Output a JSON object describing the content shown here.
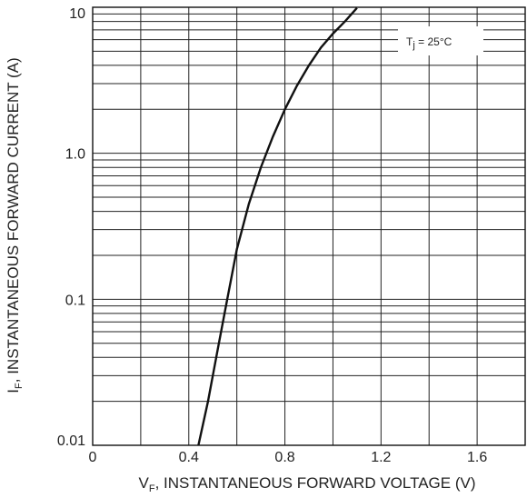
{
  "chart_data": {
    "type": "line",
    "title": "",
    "xlabel": {
      "main": "V",
      "sub": "F",
      "rest": ", INSTANTANEOUS FORWARD VOLTAGE (V)"
    },
    "ylabel": {
      "main": "I",
      "sub": "F",
      "rest": ", INSTANTANEOUS FORWARD CURRENT (A)"
    },
    "xlim": [
      0,
      1.8
    ],
    "ylim": [
      0.01,
      10
    ],
    "yscale": "log",
    "x_ticks": [
      "0",
      "0.4",
      "0.8",
      "1.2",
      "1.6"
    ],
    "x_tick_values": [
      0,
      0.4,
      0.8,
      1.2,
      1.6
    ],
    "y_ticks": [
      "0.01",
      "0.1",
      "1.0",
      "10"
    ],
    "y_tick_values": [
      0.01,
      0.1,
      1.0,
      10
    ],
    "grid": true,
    "annotation": {
      "main": "T",
      "sub": "j",
      "rest": " = 25°C"
    },
    "series": [
      {
        "x": [
          0.44,
          0.48,
          0.52,
          0.56,
          0.6,
          0.65,
          0.7,
          0.75,
          0.8,
          0.85,
          0.9,
          0.95,
          1.0,
          1.05,
          1.1
        ],
        "y": [
          0.01,
          0.02,
          0.045,
          0.1,
          0.22,
          0.45,
          0.8,
          1.3,
          2.0,
          2.9,
          4.0,
          5.3,
          6.6,
          8.0,
          9.9
        ]
      }
    ]
  }
}
